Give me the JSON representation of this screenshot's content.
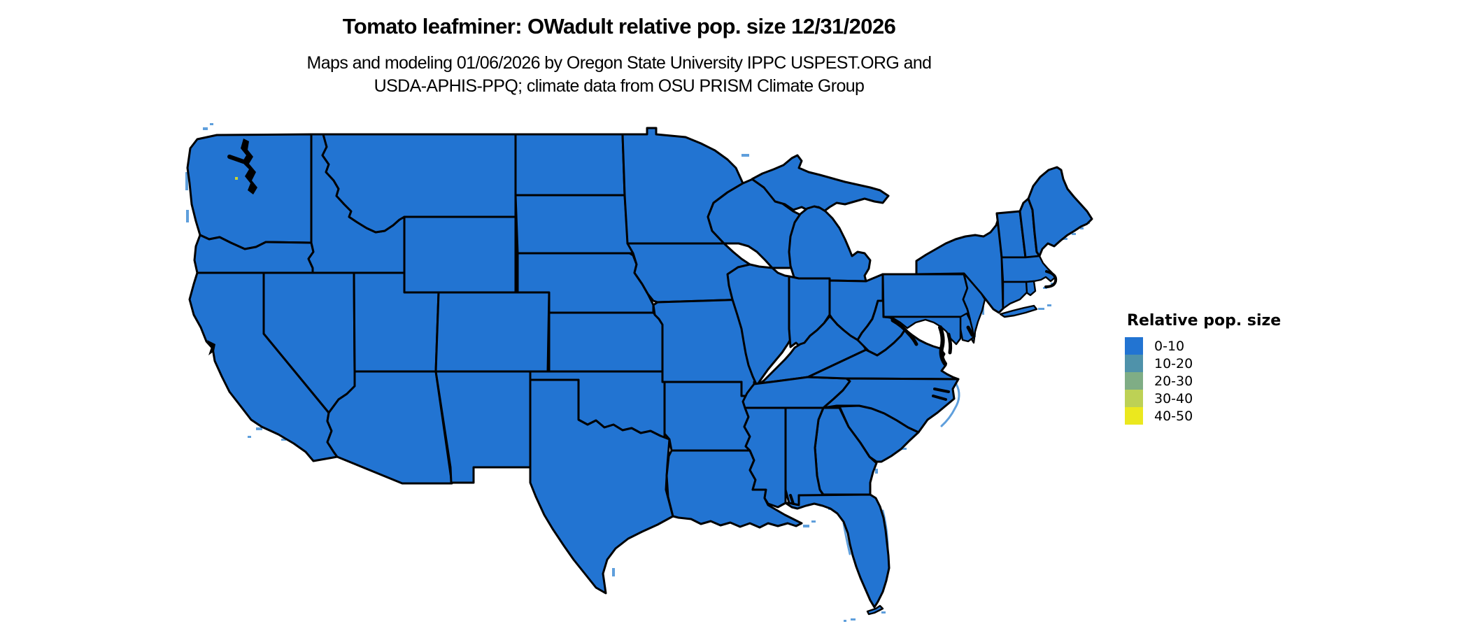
{
  "figure": {
    "title": "Tomato leafminer: OWadult relative pop. size 12/31/2026",
    "subtitle_line1": "Maps and modeling 01/06/2026 by Oregon State University IPPC USPEST.ORG and",
    "subtitle_line2": "USDA-APHIS-PPQ; climate data from OSU PRISM Climate Group"
  },
  "legend": {
    "title": "Relative pop. size",
    "items": [
      {
        "label": "0-10",
        "color": "#2274d2"
      },
      {
        "label": "10-20",
        "color": "#4f92aa"
      },
      {
        "label": "20-30",
        "color": "#7fad85"
      },
      {
        "label": "30-40",
        "color": "#bdd155"
      },
      {
        "label": "40-50",
        "color": "#ebe81e"
      }
    ]
  },
  "map": {
    "region": "Contiguous United States",
    "fill_color": "#2274d2",
    "border_color": "#000000",
    "coast_fringe_color": "#5f9fdc",
    "hotspot_color": "#c9d435",
    "background_color": "#ffffff",
    "dominant_class": "0-10"
  },
  "chart_data": {
    "type": "choropleth_map",
    "title": "Tomato leafminer: OWadult relative pop. size 12/31/2026",
    "legend_title": "Relative pop. size",
    "classes": [
      "0-10",
      "10-20",
      "20-30",
      "30-40",
      "40-50"
    ],
    "class_colors": [
      "#2274d2",
      "#4f92aa",
      "#7fad85",
      "#bdd155",
      "#ebe81e"
    ],
    "observation": "All contiguous U.S. states are rendered in the lowest class (0-10, uniform blue); higher classes appear only in the legend."
  }
}
